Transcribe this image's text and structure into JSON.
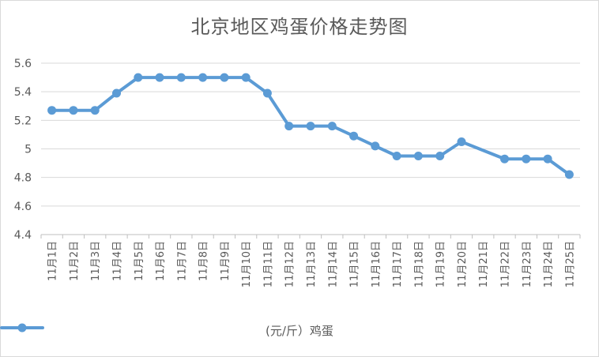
{
  "chart_data": {
    "type": "line",
    "title": "北京地区鸡蛋价格走势图",
    "xlabel": "",
    "ylabel": "",
    "categories": [
      "11月1日",
      "11月2日",
      "11月3日",
      "11月4日",
      "11月5日",
      "11月6日",
      "11月7日",
      "11月8日",
      "11月9日",
      "11月10日",
      "11月11日",
      "11月12日",
      "11月13日",
      "11月14日",
      "11月15日",
      "11月16日",
      "11月17日",
      "11月18日",
      "11月19日",
      "11月20日",
      "11月21日",
      "11月22日",
      "11月23日",
      "11月24日",
      "11月25日"
    ],
    "series": [
      {
        "name": "(元/斤）鸡蛋",
        "color": "#5b9bd5",
        "values": [
          5.27,
          5.27,
          5.27,
          5.39,
          5.5,
          5.5,
          5.5,
          5.5,
          5.5,
          5.5,
          5.39,
          5.16,
          5.16,
          5.16,
          5.09,
          5.02,
          4.95,
          4.95,
          4.95,
          5.05,
          null,
          4.93,
          4.93,
          4.93,
          4.82
        ]
      }
    ],
    "ylim": [
      4.4,
      5.6
    ],
    "yticks": [
      "4.4",
      "4.6",
      "4.8",
      "5",
      "5.2",
      "5.4",
      "5.6"
    ],
    "grid": true,
    "legend": "bottom"
  }
}
